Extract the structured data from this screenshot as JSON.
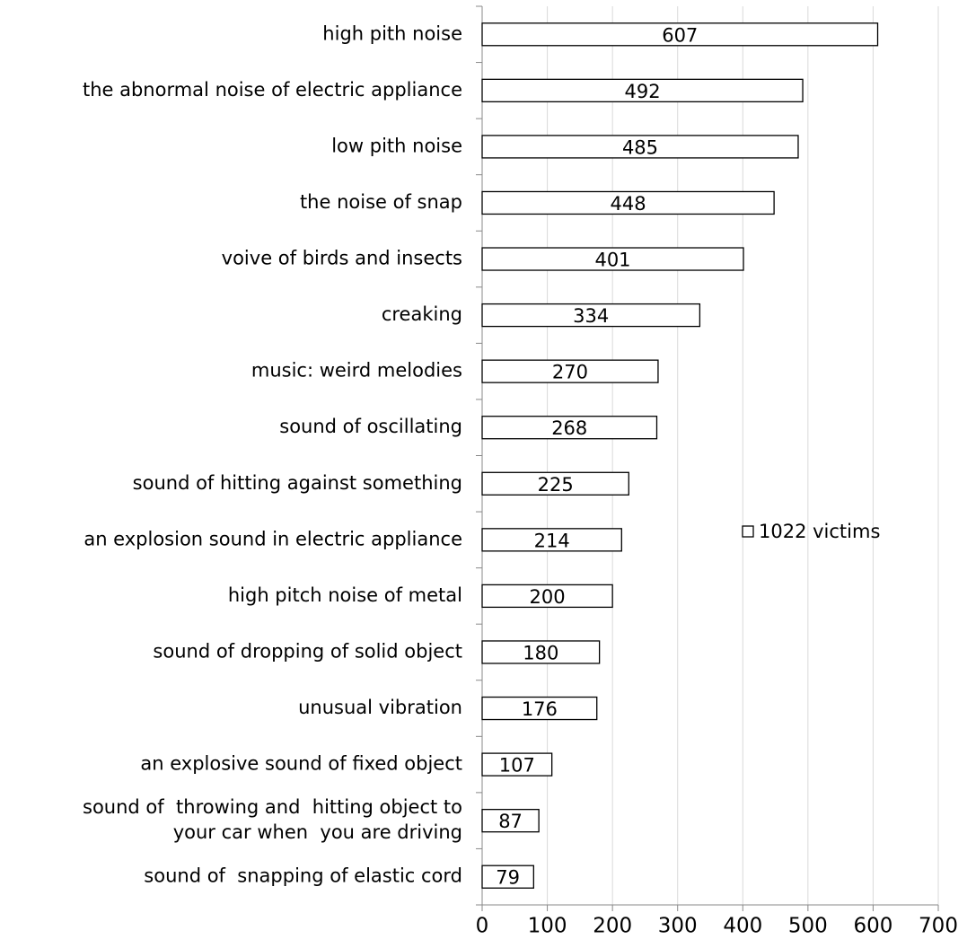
{
  "chart_data": {
    "type": "bar",
    "orientation": "horizontal",
    "categories": [
      "high pith noise",
      "the abnormal noise of electric appliance",
      "low pith noise",
      "the noise of snap",
      "voive of birds and insects",
      "creaking",
      "music: weird melodies",
      "sound of oscillating",
      "sound of hitting against something",
      "an explosion sound in electric appliance",
      "high pitch noise of metal",
      "sound of dropping of solid object",
      "unusual vibration",
      "an explosive sound of fixed object",
      [
        "sound of  throwing and  hitting object to",
        "your car when  you are driving"
      ],
      "sound of  snapping of elastic cord"
    ],
    "series": [
      {
        "name": "1022 victims",
        "color": "#ffffff",
        "values": [
          607,
          492,
          485,
          448,
          401,
          334,
          270,
          268,
          225,
          214,
          200,
          180,
          176,
          107,
          87,
          79
        ]
      }
    ],
    "xlim": [
      0,
      700
    ],
    "xticks": [
      0,
      100,
      200,
      300,
      400,
      500,
      600,
      700
    ],
    "grid": true
  }
}
